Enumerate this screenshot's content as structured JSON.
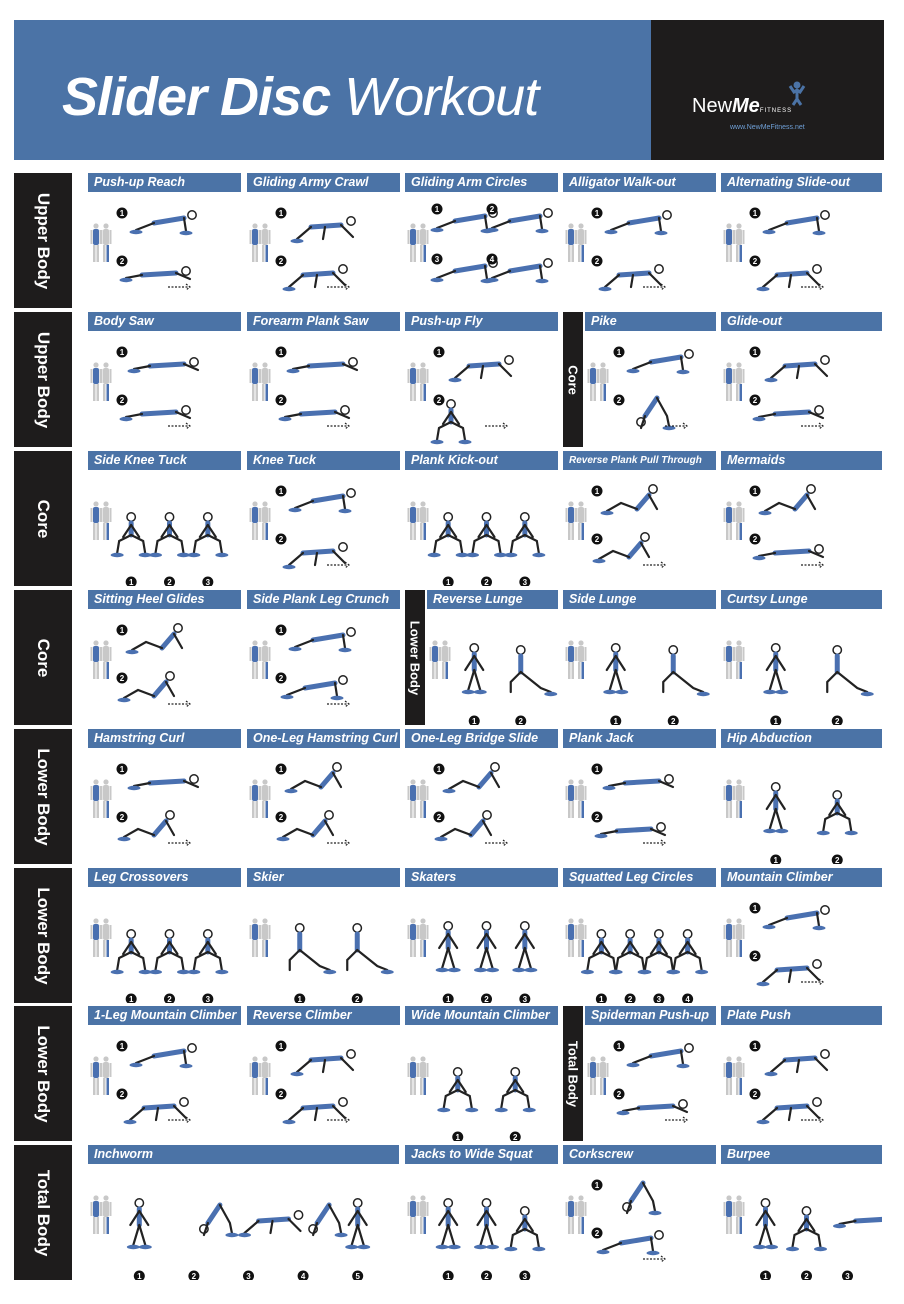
{
  "header": {
    "title_bold": "Slider Disc",
    "title_light": "Workout",
    "logo_new": "New",
    "logo_me": "Me",
    "logo_fitness": "FITNESS",
    "logo_url": "www.NewMeFitness.net"
  },
  "colors": {
    "blue": "#4b73a6",
    "dark": "#1e1c1c",
    "muscle": "#4a70b0"
  },
  "rows": [
    {
      "label": "Upper Body",
      "exercises": [
        {
          "name": "Push-up Reach",
          "steps": [
            "1",
            "2"
          ]
        },
        {
          "name": "Gliding Army Crawl",
          "steps": [
            "1",
            "2"
          ]
        },
        {
          "name": "Gliding Arm Circles",
          "steps": [
            "1",
            "2",
            "3",
            "4"
          ]
        },
        {
          "name": "Alligator Walk-out",
          "steps": [
            "1",
            "2"
          ]
        },
        {
          "name": "Alternating Slide-out",
          "steps": [
            "1",
            "2"
          ]
        }
      ]
    },
    {
      "label": "Upper Body",
      "section_label": "Core",
      "exercises": [
        {
          "name": "Body Saw",
          "steps": [
            "1",
            "2"
          ]
        },
        {
          "name": "Forearm Plank Saw",
          "steps": [
            "1",
            "2"
          ]
        },
        {
          "name": "Push-up Fly",
          "steps": [
            "1",
            "2"
          ]
        },
        {
          "name": "Pike",
          "steps": [
            "1",
            "2"
          ]
        },
        {
          "name": "Glide-out",
          "steps": [
            "1",
            "2"
          ]
        }
      ]
    },
    {
      "label": "Core",
      "exercises": [
        {
          "name": "Side Knee Tuck",
          "steps": [
            "1",
            "2",
            "3"
          ]
        },
        {
          "name": "Knee Tuck",
          "steps": [
            "1",
            "2"
          ]
        },
        {
          "name": "Plank Kick-out",
          "steps": [
            "1",
            "2",
            "3"
          ]
        },
        {
          "name": "Reverse Plank Pull Through",
          "steps": [
            "1",
            "2"
          ]
        },
        {
          "name": "Mermaids",
          "steps": [
            "1",
            "2"
          ]
        }
      ]
    },
    {
      "label": "Core",
      "section_label": "Lower Body",
      "exercises": [
        {
          "name": "Sitting Heel Glides",
          "steps": [
            "1",
            "2"
          ]
        },
        {
          "name": "Side Plank Leg Crunch",
          "steps": [
            "1",
            "2"
          ]
        },
        {
          "name": "Reverse Lunge",
          "steps": [
            "1",
            "2"
          ]
        },
        {
          "name": "Side Lunge",
          "steps": [
            "1",
            "2"
          ]
        },
        {
          "name": "Curtsy Lunge",
          "steps": [
            "1",
            "2"
          ]
        }
      ]
    },
    {
      "label": "Lower Body",
      "exercises": [
        {
          "name": "Hamstring Curl",
          "steps": [
            "1",
            "2"
          ]
        },
        {
          "name": "One-Leg Hamstring Curl",
          "steps": [
            "1",
            "2"
          ]
        },
        {
          "name": "One-Leg Bridge Slide",
          "steps": [
            "1",
            "2"
          ]
        },
        {
          "name": "Plank Jack",
          "steps": [
            "1",
            "2"
          ]
        },
        {
          "name": "Hip Abduction",
          "steps": [
            "1",
            "2"
          ]
        }
      ]
    },
    {
      "label": "Lower Body",
      "exercises": [
        {
          "name": "Leg Crossovers",
          "steps": [
            "1",
            "2",
            "3"
          ]
        },
        {
          "name": "Skier",
          "steps": [
            "1",
            "2"
          ]
        },
        {
          "name": "Skaters",
          "steps": [
            "1",
            "2",
            "3"
          ]
        },
        {
          "name": "Squatted Leg Circles",
          "steps": [
            "1",
            "2",
            "3",
            "4"
          ]
        },
        {
          "name": "Mountain Climber",
          "steps": [
            "1",
            "2"
          ]
        }
      ]
    },
    {
      "label": "Lower Body",
      "section_label": "Total Body",
      "exercises": [
        {
          "name": "1-Leg Mountain Climber",
          "steps": [
            "1",
            "2"
          ]
        },
        {
          "name": "Reverse Climber",
          "steps": [
            "1",
            "2"
          ]
        },
        {
          "name": "Wide Mountain Climber",
          "steps": [
            "1",
            "2"
          ]
        },
        {
          "name": "Spiderman Push-up",
          "steps": [
            "1",
            "2"
          ]
        },
        {
          "name": "Plate Push",
          "steps": [
            "1",
            "2"
          ]
        }
      ]
    },
    {
      "label": "Total Body",
      "exercises": [
        {
          "name": "Inchworm",
          "steps": [
            "1",
            "2",
            "3",
            "4",
            "5"
          ]
        },
        {
          "name": "Jacks to Wide Squat",
          "steps": [
            "1",
            "2",
            "3"
          ]
        },
        {
          "name": "Corkscrew",
          "steps": [
            "1",
            "2"
          ]
        },
        {
          "name": "Burpee",
          "steps": [
            "1",
            "2",
            "3"
          ]
        }
      ]
    }
  ]
}
